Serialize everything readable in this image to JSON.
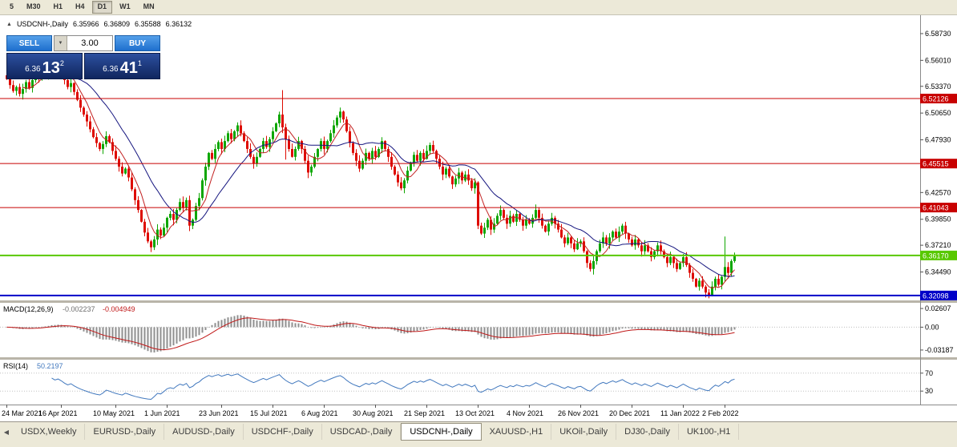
{
  "toolbar": {
    "timeframes": [
      "5",
      "M30",
      "H1",
      "H4",
      "D1",
      "W1",
      "MN"
    ],
    "active_timeframe": "D1"
  },
  "title": {
    "collapse_icon": "▲",
    "symbol": "USDCNH-,Daily",
    "open": "6.35966",
    "high": "6.36809",
    "low": "6.35588",
    "close": "6.36132"
  },
  "trade_panel": {
    "sell_label": "SELL",
    "buy_label": "BUY",
    "volume": "3.00",
    "spin_icon": "▼",
    "sell_price": {
      "prefix": "6.36",
      "big": "13",
      "sup": "2"
    },
    "buy_price": {
      "prefix": "6.36",
      "big": "41",
      "sup": "1"
    }
  },
  "indicators": {
    "macd": {
      "label": "MACD(12,26,9)",
      "value_main": "-0.002237",
      "value_signal": "-0.004949",
      "axis_ticks": [
        "0.02607",
        "0.00",
        "-0.03187"
      ]
    },
    "rsi": {
      "label": "RSI(14)",
      "value": "50.2197",
      "axis_ticks": [
        "70",
        "30"
      ]
    }
  },
  "tabs": {
    "scroll_left_icon": "◀",
    "items": [
      "USDX,Weekly",
      "EURUSD-,Daily",
      "AUDUSD-,Daily",
      "USDCHF-,Daily",
      "USDCAD-,Daily",
      "USDCNH-,Daily",
      "XAUUSD-,H1",
      "UKOil-,Daily",
      "DJ30-,Daily",
      "UK100-,H1"
    ],
    "active": "USDCNH-,Daily"
  },
  "chart_data": {
    "type": "candlestick",
    "symbol": "USDCNH-,Daily",
    "ohlc": {
      "open": 6.35966,
      "high": 6.36809,
      "low": 6.35588,
      "close": 6.36132
    },
    "y_range": [
      6.316,
      6.606
    ],
    "y_ticks": [
      "6.58730",
      "6.56010",
      "6.53370",
      "6.50650",
      "6.47930",
      "6.42570",
      "6.39850",
      "6.37210",
      "6.34490"
    ],
    "x_labels": [
      {
        "label": "24 Mar 2021",
        "index": 0
      },
      {
        "label": "16 Apr 2021",
        "index": 17
      },
      {
        "label": "10 May 2021",
        "index": 34
      },
      {
        "label": "1 Jun 2021",
        "index": 50
      },
      {
        "label": "23 Jun 2021",
        "index": 67
      },
      {
        "label": "15 Jul 2021",
        "index": 83
      },
      {
        "label": "6 Aug 2021",
        "index": 99
      },
      {
        "label": "30 Aug 2021",
        "index": 115
      },
      {
        "label": "21 Sep 2021",
        "index": 131
      },
      {
        "label": "13 Oct 2021",
        "index": 147
      },
      {
        "label": "4 Nov 2021",
        "index": 163
      },
      {
        "label": "26 Nov 2021",
        "index": 179
      },
      {
        "label": "20 Dec 2021",
        "index": 195
      },
      {
        "label": "11 Jan 2022",
        "index": 211
      },
      {
        "label": "2 Feb 2022",
        "index": 224
      }
    ],
    "h_lines": [
      {
        "price": 6.52126,
        "label": "6.52126",
        "color": "#C80000",
        "width": 1
      },
      {
        "price": 6.45515,
        "label": "6.45515",
        "color": "#C80000",
        "width": 1
      },
      {
        "price": 6.41043,
        "label": "6.41043",
        "color": "#C80000",
        "width": 1
      },
      {
        "price": 6.3617,
        "label": "6.36170",
        "color": "#58C800",
        "width": 2
      },
      {
        "price": 6.32098,
        "label": "6.32098",
        "color": "#0000C8",
        "width": 2
      }
    ],
    "first_open": 6.545,
    "closes": [
      6.541,
      6.535,
      6.529,
      6.533,
      6.526,
      6.531,
      6.538,
      6.532,
      6.54,
      6.547,
      6.543,
      6.55,
      6.545,
      6.552,
      6.556,
      6.55,
      6.554,
      6.548,
      6.54,
      6.533,
      6.537,
      6.528,
      6.52,
      6.512,
      6.505,
      6.498,
      6.49,
      6.482,
      6.476,
      6.47,
      6.475,
      6.483,
      6.477,
      6.468,
      6.46,
      6.452,
      6.445,
      6.45,
      6.441,
      6.429,
      6.418,
      6.408,
      6.396,
      6.385,
      6.376,
      6.37,
      6.378,
      6.388,
      6.382,
      6.39,
      6.4,
      6.404,
      6.398,
      6.408,
      6.416,
      6.41,
      6.418,
      6.392,
      6.398,
      6.412,
      6.42,
      6.438,
      6.452,
      6.466,
      6.46,
      6.47,
      6.477,
      6.47,
      6.478,
      6.486,
      6.48,
      6.488,
      6.494,
      6.486,
      6.478,
      6.47,
      6.462,
      6.455,
      6.462,
      6.47,
      6.478,
      6.472,
      6.48,
      6.488,
      6.496,
      6.505,
      6.492,
      6.48,
      6.47,
      6.462,
      6.47,
      6.478,
      6.47,
      6.458,
      6.446,
      6.452,
      6.462,
      6.47,
      6.478,
      6.47,
      6.478,
      6.486,
      6.494,
      6.502,
      6.508,
      6.5,
      6.488,
      6.476,
      6.466,
      6.458,
      6.45,
      6.458,
      6.466,
      6.46,
      6.468,
      6.462,
      6.47,
      6.478,
      6.47,
      6.462,
      6.452,
      6.444,
      6.436,
      6.43,
      6.438,
      6.448,
      6.456,
      6.464,
      6.458,
      6.466,
      6.46,
      6.468,
      6.474,
      6.468,
      6.46,
      6.452,
      6.444,
      6.45,
      6.442,
      6.434,
      6.44,
      6.446,
      6.438,
      6.444,
      6.438,
      6.43,
      6.436,
      6.392,
      6.384,
      6.39,
      6.398,
      6.388,
      6.394,
      6.402,
      6.408,
      6.4,
      6.394,
      6.402,
      6.396,
      6.404,
      6.398,
      6.392,
      6.398,
      6.394,
      6.4,
      6.408,
      6.4,
      6.392,
      6.386,
      6.394,
      6.4,
      6.394,
      6.388,
      6.38,
      6.374,
      6.38,
      6.374,
      6.368,
      6.374,
      6.376,
      6.366,
      6.354,
      6.348,
      6.356,
      6.366,
      6.374,
      6.38,
      6.374,
      6.38,
      6.386,
      6.38,
      6.386,
      6.392,
      6.384,
      6.378,
      6.372,
      6.378,
      6.372,
      6.366,
      6.372,
      6.366,
      6.36,
      6.366,
      6.372,
      6.366,
      6.36,
      6.354,
      6.36,
      6.354,
      6.348,
      6.354,
      6.36,
      6.352,
      6.344,
      6.338,
      6.33,
      6.336,
      6.33,
      6.324,
      6.321,
      6.33,
      6.338,
      6.332,
      6.34,
      6.35,
      6.344,
      6.356,
      6.361
    ],
    "wick_boosts": {
      "86": [
        0.02,
        0.004
      ],
      "87": [
        0.002,
        0.016
      ],
      "224": [
        0.028,
        0.002
      ]
    },
    "moving_averages": [
      {
        "period": 6,
        "color": "#C22020"
      },
      {
        "period": 18,
        "color": "#15157F"
      }
    ],
    "macd": {
      "fast": 12,
      "slow": 26,
      "signal": 9,
      "y_range": [
        -0.042,
        0.034
      ],
      "hist_color": "#8f8f8f",
      "signal_color": "#C01818"
    },
    "rsi": {
      "period": 14,
      "levels": [
        70,
        30
      ],
      "color": "#4178BE",
      "y_range": [
        0,
        100
      ]
    },
    "colors": {
      "up": "#0EA600",
      "down": "#DE0B00",
      "background": "#FFFFFF"
    }
  }
}
